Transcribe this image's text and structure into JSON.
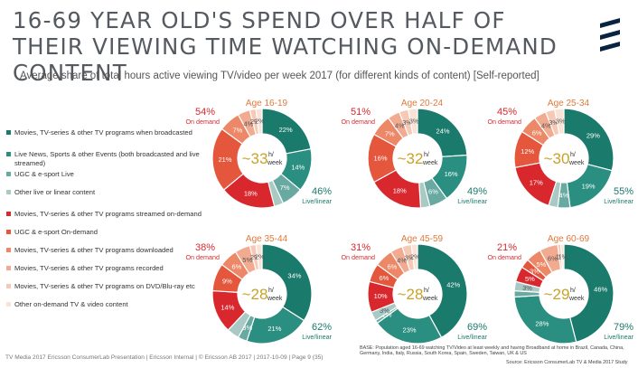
{
  "title": "16-69 YEAR OLD'S SPEND OVER HALF OF THEIR VIEWING TIME WATCHING ON-DEMAND CONTENT",
  "subtitle": "Average share of total hours active viewing TV/video per week 2017 (for different kinds of content) [Self-reported]",
  "legend": [
    {
      "label": "Movies, TV-series & other TV programs when broadcasted",
      "color": "#1a7a6c"
    },
    {
      "label": "Live News, Sports & other Events (both broadcasted and live streamed)",
      "color": "#2a8f80"
    },
    {
      "label": "UGC & e-sport Live",
      "color": "#68a9a1"
    },
    {
      "label": "Other live or linear content",
      "color": "#a9c9c5"
    },
    {
      "label": "Movies, TV-series & other TV programs streamed on-demand",
      "color": "#d8282e"
    },
    {
      "label": "UGC & e-sport On-demand",
      "color": "#e4573d"
    },
    {
      "label": "Movies, TV-series & other TV programs downloaded",
      "color": "#ec8867"
    },
    {
      "label": "Movies, TV-series & other TV programs recorded",
      "color": "#f2ab90"
    },
    {
      "label": "Movies, TV-series & other TV programs on DVD/Blu-ray etc",
      "color": "#f6c9b6"
    },
    {
      "label": "Other on-demand TV & video content",
      "color": "#fae2d6"
    }
  ],
  "chart_data": [
    {
      "type": "pie",
      "age": "Age 16-19",
      "hours": "~33",
      "unit_top": "h/",
      "unit_bottom": "week",
      "ondemand_pct": "54%",
      "ondemand_label": "On demand",
      "linear_pct": "46%",
      "linear_label": "Live/linear",
      "segments": [
        {
          "name": "Movies, TV-series & other TV programs when broadcasted",
          "value": 22,
          "label": "22%"
        },
        {
          "name": "Live News, Sports & other Events (both broadcasted and live streamed)",
          "value": 14,
          "label": "14%"
        },
        {
          "name": "UGC & e-sport Live",
          "value": 7,
          "label": "7%"
        },
        {
          "name": "Other live or linear content",
          "value": 3,
          "label": ""
        },
        {
          "name": "Movies, TV-series & other TV programs streamed on-demand",
          "value": 18,
          "label": "18%"
        },
        {
          "name": "UGC & e-sport On-demand",
          "value": 21,
          "label": "21%"
        },
        {
          "name": "Movies, TV-series & other TV programs downloaded",
          "value": 7,
          "label": "7%"
        },
        {
          "name": "Movies, TV-series & other TV programs recorded",
          "value": 4,
          "label": "4%"
        },
        {
          "name": "Movies, TV-series & other TV programs on DVD/Blu-ray etc",
          "value": 2,
          "label": "2%"
        },
        {
          "name": "Other on-demand TV & video content",
          "value": 2,
          "label": "2%"
        }
      ]
    },
    {
      "type": "pie",
      "age": "Age 20-24",
      "hours": "~32",
      "unit_top": "h/",
      "unit_bottom": "week",
      "ondemand_pct": "51%",
      "ondemand_label": "On demand",
      "linear_pct": "49%",
      "linear_label": "Live/linear",
      "segments": [
        {
          "name": "Movies, TV-series & other TV programs when broadcasted",
          "value": 24,
          "label": "24%"
        },
        {
          "name": "Live News, Sports & other Events (both broadcasted and live streamed)",
          "value": 16,
          "label": "16%"
        },
        {
          "name": "UGC & e-sport Live",
          "value": 6,
          "label": "6%"
        },
        {
          "name": "Other live or linear content",
          "value": 3,
          "label": ""
        },
        {
          "name": "Movies, TV-series & other TV programs streamed on-demand",
          "value": 18,
          "label": "18%"
        },
        {
          "name": "UGC & e-sport On-demand",
          "value": 16,
          "label": "16%"
        },
        {
          "name": "Movies, TV-series & other TV programs downloaded",
          "value": 7,
          "label": "7%"
        },
        {
          "name": "Movies, TV-series & other TV programs recorded",
          "value": 4,
          "label": "4%"
        },
        {
          "name": "Movies, TV-series & other TV programs on DVD/Blu-ray etc",
          "value": 3,
          "label": "3%"
        },
        {
          "name": "Other on-demand TV & video content",
          "value": 3,
          "label": "3%"
        }
      ]
    },
    {
      "type": "pie",
      "age": "Age 25-34",
      "hours": "~30",
      "unit_top": "h/",
      "unit_bottom": "week",
      "ondemand_pct": "45%",
      "ondemand_label": "On demand",
      "linear_pct": "55%",
      "linear_label": "Live/linear",
      "segments": [
        {
          "name": "Movies, TV-series & other TV programs when broadcasted",
          "value": 29,
          "label": "29%"
        },
        {
          "name": "Live News, Sports & other Events (both broadcasted and live streamed)",
          "value": 19,
          "label": "19%"
        },
        {
          "name": "UGC & e-sport Live",
          "value": 4,
          "label": "4%"
        },
        {
          "name": "Other live or linear content",
          "value": 3,
          "label": ""
        },
        {
          "name": "Movies, TV-series & other TV programs streamed on-demand",
          "value": 17,
          "label": "17%"
        },
        {
          "name": "UGC & e-sport On-demand",
          "value": 12,
          "label": "12%"
        },
        {
          "name": "Movies, TV-series & other TV programs downloaded",
          "value": 6,
          "label": "6%"
        },
        {
          "name": "Movies, TV-series & other TV programs recorded",
          "value": 4,
          "label": "4%"
        },
        {
          "name": "Movies, TV-series & other TV programs on DVD/Blu-ray etc",
          "value": 3,
          "label": "3%"
        },
        {
          "name": "Other on-demand TV & video content",
          "value": 3,
          "label": "3%"
        }
      ]
    },
    {
      "type": "pie",
      "age": "Age 35-44",
      "hours": "~28",
      "unit_top": "h/",
      "unit_bottom": "week",
      "ondemand_pct": "38%",
      "ondemand_label": "On demand",
      "linear_pct": "62%",
      "linear_label": "Live/linear",
      "segments": [
        {
          "name": "Movies, TV-series & other TV programs when broadcasted",
          "value": 34,
          "label": "34%"
        },
        {
          "name": "Live News, Sports & other Events (both broadcasted and live streamed)",
          "value": 21,
          "label": "21%"
        },
        {
          "name": "UGC & e-sport Live",
          "value": 3,
          "label": "3%"
        },
        {
          "name": "Other live or linear content",
          "value": 4,
          "label": ""
        },
        {
          "name": "Movies, TV-series & other TV programs streamed on-demand",
          "value": 14,
          "label": "14%"
        },
        {
          "name": "UGC & e-sport On-demand",
          "value": 9,
          "label": "9%"
        },
        {
          "name": "Movies, TV-series & other TV programs downloaded",
          "value": 6,
          "label": "6%"
        },
        {
          "name": "Movies, TV-series & other TV programs recorded",
          "value": 5,
          "label": "5%"
        },
        {
          "name": "Movies, TV-series & other TV programs on DVD/Blu-ray etc",
          "value": 2,
          "label": "2%"
        },
        {
          "name": "Other on-demand TV & video content",
          "value": 2,
          "label": "2%"
        }
      ]
    },
    {
      "type": "pie",
      "age": "Age 45-59",
      "hours": "~28",
      "unit_top": "h/",
      "unit_bottom": "week",
      "ondemand_pct": "31%",
      "ondemand_label": "On demand",
      "linear_pct": "69%",
      "linear_label": "Live/linear",
      "segments": [
        {
          "name": "Movies, TV-series & other TV programs when broadcasted",
          "value": 42,
          "label": "42%"
        },
        {
          "name": "Live News, Sports & other Events (both broadcasted and live streamed)",
          "value": 23,
          "label": "23%"
        },
        {
          "name": "UGC & e-sport Live",
          "value": 1,
          "label": "1%"
        },
        {
          "name": "Other live or linear content",
          "value": 3,
          "label": "3%"
        },
        {
          "name": "Movies, TV-series & other TV programs streamed on-demand",
          "value": 10,
          "label": "10%"
        },
        {
          "name": "UGC & e-sport On-demand",
          "value": 6,
          "label": "6%"
        },
        {
          "name": "Movies, TV-series & other TV programs downloaded",
          "value": 6,
          "label": "6%"
        },
        {
          "name": "Movies, TV-series & other TV programs recorded",
          "value": 4,
          "label": "4%"
        },
        {
          "name": "Movies, TV-series & other TV programs on DVD/Blu-ray etc",
          "value": 3,
          "label": "3%"
        },
        {
          "name": "Other on-demand TV & video content",
          "value": 2,
          "label": "2%"
        }
      ]
    },
    {
      "type": "pie",
      "age": "Age 60-69",
      "hours": "~29",
      "unit_top": "h/",
      "unit_bottom": "week",
      "ondemand_pct": "21%",
      "ondemand_label": "On demand",
      "linear_pct": "79%",
      "linear_label": "Live/linear",
      "segments": [
        {
          "name": "Movies, TV-series & other TV programs when broadcasted",
          "value": 46,
          "label": "46%"
        },
        {
          "name": "Live News, Sports & other Events (both broadcasted and live streamed)",
          "value": 28,
          "label": "28%"
        },
        {
          "name": "UGC & e-sport Live",
          "value": 2,
          "label": ""
        },
        {
          "name": "Other live or linear content",
          "value": 3,
          "label": "3%"
        },
        {
          "name": "Movies, TV-series & other TV programs streamed on-demand",
          "value": 5,
          "label": "5%"
        },
        {
          "name": "UGC & e-sport On-demand",
          "value": 3,
          "label": "3%"
        },
        {
          "name": "Movies, TV-series & other TV programs downloaded",
          "value": 5,
          "label": "5%"
        },
        {
          "name": "Movies, TV-series & other TV programs recorded",
          "value": 6,
          "label": "6%"
        },
        {
          "name": "Movies, TV-series & other TV programs on DVD/Blu-ray etc",
          "value": 1,
          "label": "1%"
        },
        {
          "name": "Other on-demand TV & video content",
          "value": 1,
          "label": "1%"
        }
      ]
    }
  ],
  "footer": "TV Media 2017 Ericsson ConsumerLab Presentation  |  Ericsson Internal  |  © Ericsson AB 2017  |  2017-10-09  |  Page 9 (35)",
  "base": "BASE: Population  aged 16-69 watching TV/Video at least weekly and having Broadband at home in Brazil, Canada, China, Germany, India, Italy, Russia, South Korea, Spain, Sweden, Taiwan, UK & US",
  "source": "Source: Ericsson ConsumerLab TV & Media 2017 Study"
}
